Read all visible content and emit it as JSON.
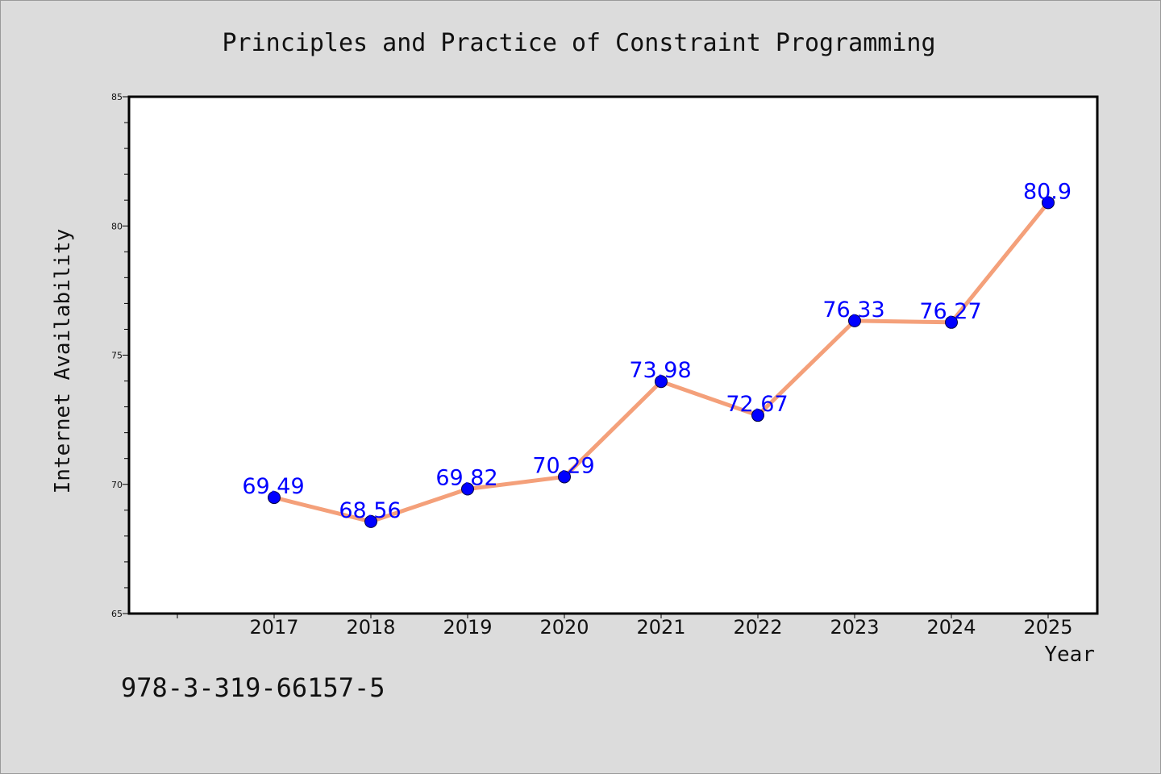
{
  "chart_data": {
    "type": "line",
    "title": "Principles and Practice of Constraint Programming",
    "xlabel": "Year",
    "ylabel": "Internet Availability",
    "categories": [
      "2017",
      "2018",
      "2019",
      "2020",
      "2021",
      "2022",
      "2023",
      "2024",
      "2025"
    ],
    "values": [
      69.49,
      68.56,
      69.82,
      70.29,
      73.98,
      72.67,
      76.33,
      76.27,
      80.9
    ],
    "data_labels": [
      "69.49",
      "68.56",
      "69.82",
      "70.29",
      "73.98",
      "72.67",
      "76.33",
      "76.27",
      "80.9"
    ],
    "ylim": [
      65,
      85
    ],
    "yticks": [
      "65",
      "70",
      "75",
      "80",
      "85"
    ],
    "grid": false,
    "line_color": "#f4a07a",
    "marker_color": "#0000ff",
    "label_color": "#0000ff"
  },
  "footer_text": "978-3-319-66157-5"
}
